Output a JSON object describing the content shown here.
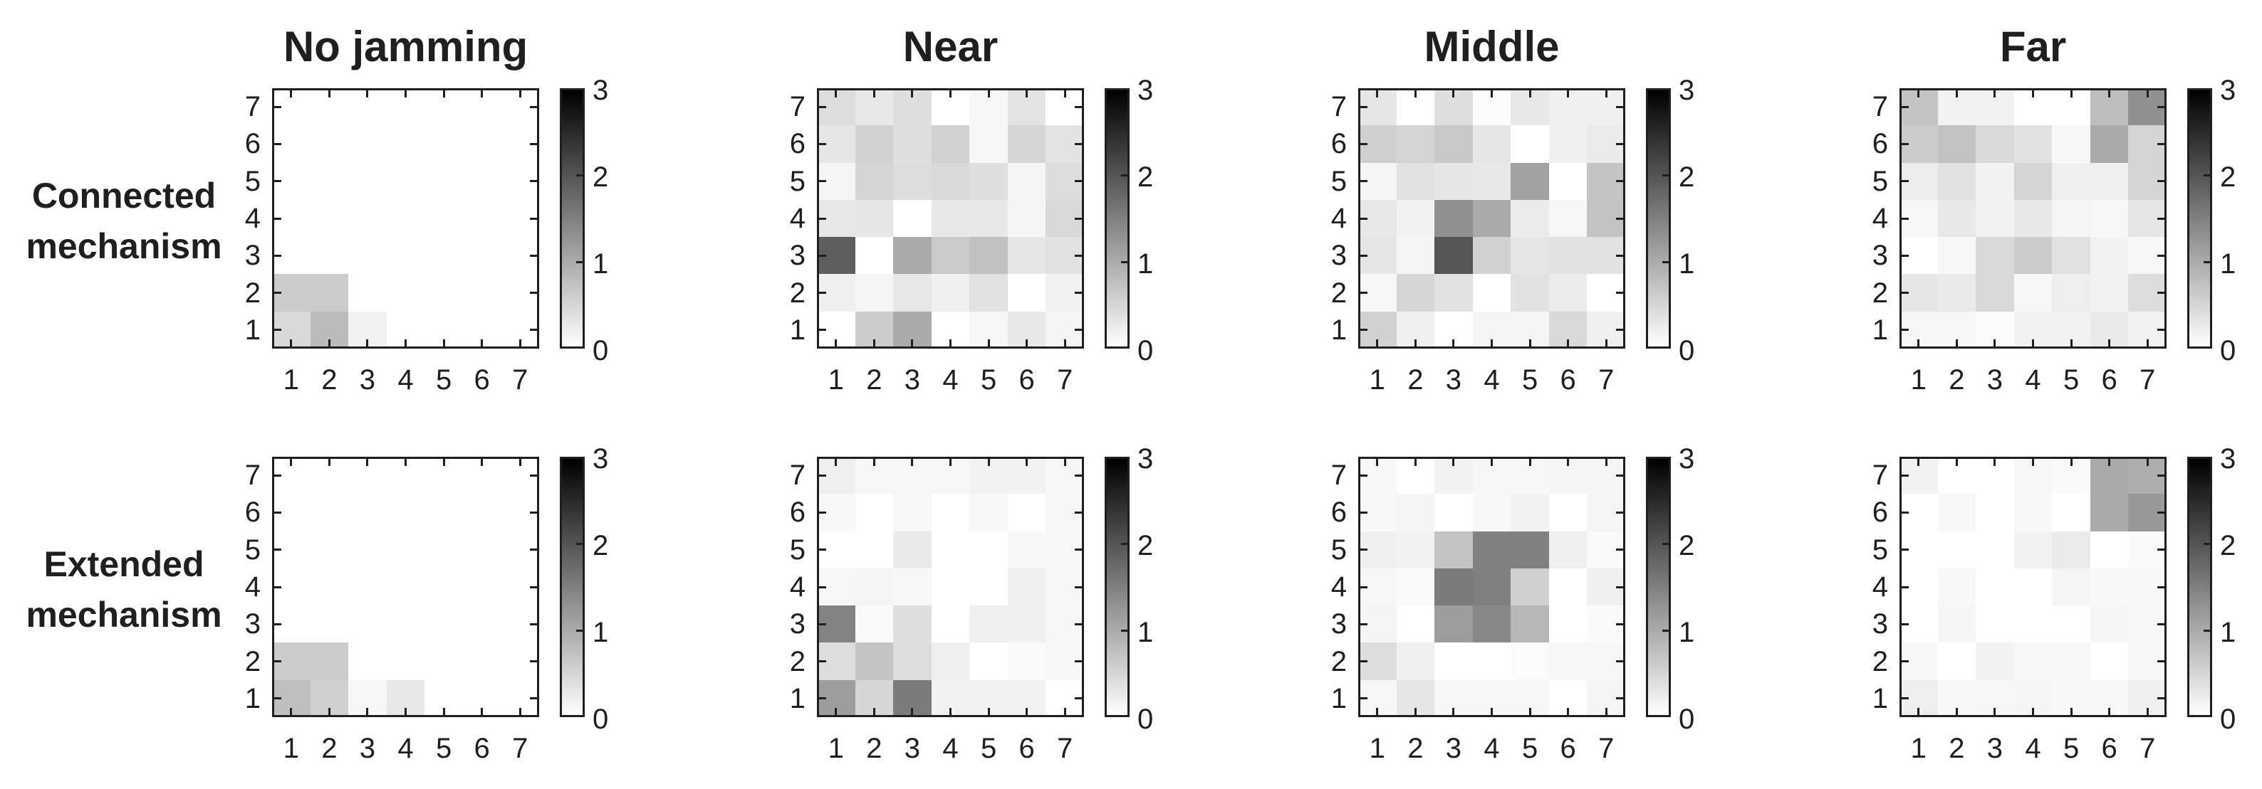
{
  "figure": {
    "column_titles": [
      "No jamming",
      "Near",
      "Middle",
      "Far"
    ],
    "row_labels": [
      "Connected mechanism",
      "Extended mechanism"
    ]
  },
  "axes": {
    "x_ticks": [
      "1",
      "2",
      "3",
      "4",
      "5",
      "6",
      "7"
    ],
    "y_ticks": [
      "1",
      "2",
      "3",
      "4",
      "5",
      "6",
      "7"
    ]
  },
  "colorbar": {
    "ticks": [
      "0",
      "1",
      "2",
      "3"
    ],
    "min": 0,
    "max": 3
  },
  "chart_data": {
    "type": "heatmap",
    "grid": "7x7",
    "x": [
      1,
      2,
      3,
      4,
      5,
      6,
      7
    ],
    "y": [
      1,
      2,
      3,
      4,
      5,
      6,
      7
    ],
    "value_range": [
      0,
      3
    ],
    "colormap": "gray, 0=white, 3=black",
    "rows_order": "values arrays are listed top-to-bottom, i.e. y=7 first down to y=1",
    "panels": [
      {
        "row": "Connected mechanism",
        "column": "No jamming",
        "values": [
          [
            0,
            0,
            0,
            0,
            0,
            0,
            0
          ],
          [
            0,
            0,
            0,
            0,
            0,
            0,
            0
          ],
          [
            0,
            0,
            0,
            0,
            0,
            0,
            0
          ],
          [
            0,
            0,
            0,
            0,
            0,
            0,
            0
          ],
          [
            0,
            0,
            0,
            0,
            0,
            0,
            0
          ],
          [
            0.6,
            0.6,
            0,
            0,
            0,
            0,
            0
          ],
          [
            0.45,
            0.8,
            0.15,
            0,
            0,
            0,
            0
          ]
        ]
      },
      {
        "row": "Connected mechanism",
        "column": "Near",
        "values": [
          [
            0.4,
            0.27,
            0.38,
            0,
            0.1,
            0.33,
            0
          ],
          [
            0.3,
            0.53,
            0.38,
            0.53,
            0.1,
            0.48,
            0.33
          ],
          [
            0.12,
            0.5,
            0.4,
            0.45,
            0.38,
            0.12,
            0.4
          ],
          [
            0.27,
            0.3,
            0,
            0.27,
            0.27,
            0.12,
            0.45
          ],
          [
            1.9,
            0,
            1.0,
            0.62,
            0.73,
            0.3,
            0.35
          ],
          [
            0.19,
            0.12,
            0.27,
            0.18,
            0.34,
            0,
            0.15
          ],
          [
            0,
            0.6,
            1.0,
            0,
            0.1,
            0.27,
            0.12
          ]
        ]
      },
      {
        "row": "Connected mechanism",
        "column": "Middle",
        "values": [
          [
            0.3,
            0,
            0.38,
            0.05,
            0.27,
            0.18,
            0.18
          ],
          [
            0.56,
            0.5,
            0.63,
            0.3,
            0,
            0.18,
            0.24
          ],
          [
            0.12,
            0.34,
            0.3,
            0.27,
            1.1,
            0,
            0.68
          ],
          [
            0.27,
            0.15,
            1.3,
            1.0,
            0.24,
            0.1,
            0.71
          ],
          [
            0.3,
            0.12,
            2.0,
            0.53,
            0.3,
            0.34,
            0.34
          ],
          [
            0.1,
            0.48,
            0.34,
            0,
            0.34,
            0.24,
            0
          ],
          [
            0.53,
            0.18,
            0,
            0.12,
            0.12,
            0.45,
            0.18
          ]
        ]
      },
      {
        "row": "Connected mechanism",
        "column": "Far",
        "values": [
          [
            0.68,
            0.15,
            0.15,
            0,
            0,
            0.78,
            1.3
          ],
          [
            0.6,
            0.72,
            0.45,
            0.34,
            0.1,
            1.0,
            0.5
          ],
          [
            0.21,
            0.34,
            0.15,
            0.5,
            0.18,
            0.18,
            0.5
          ],
          [
            0.1,
            0.27,
            0.15,
            0.27,
            0.12,
            0.1,
            0.3
          ],
          [
            0,
            0.1,
            0.45,
            0.6,
            0.35,
            0.15,
            0.1
          ],
          [
            0.3,
            0.25,
            0.45,
            0.1,
            0.2,
            0.15,
            0.4
          ],
          [
            0.1,
            0.1,
            0.05,
            0.15,
            0.15,
            0.25,
            0.15
          ]
        ]
      },
      {
        "row": "Extended mechanism",
        "column": "No jamming",
        "values": [
          [
            0,
            0,
            0,
            0,
            0,
            0,
            0
          ],
          [
            0,
            0,
            0,
            0,
            0,
            0,
            0
          ],
          [
            0,
            0,
            0,
            0,
            0,
            0,
            0
          ],
          [
            0,
            0,
            0,
            0,
            0,
            0,
            0
          ],
          [
            0,
            0,
            0,
            0,
            0,
            0,
            0
          ],
          [
            0.6,
            0.6,
            0,
            0,
            0,
            0,
            0
          ],
          [
            0.75,
            0.55,
            0.1,
            0.27,
            0,
            0,
            0
          ]
        ]
      },
      {
        "row": "Extended mechanism",
        "column": "Near",
        "values": [
          [
            0.2,
            0.1,
            0.1,
            0.1,
            0.15,
            0.15,
            0.1
          ],
          [
            0.08,
            0,
            0.1,
            0,
            0.08,
            0,
            0.1
          ],
          [
            0,
            0,
            0.25,
            0,
            0,
            0.08,
            0.08
          ],
          [
            0.1,
            0.12,
            0.1,
            0,
            0,
            0.18,
            0.1
          ],
          [
            1.45,
            0.06,
            0.38,
            0,
            0.18,
            0.18,
            0.1
          ],
          [
            0.4,
            0.68,
            0.4,
            0.2,
            0,
            0.06,
            0.08
          ],
          [
            1.15,
            0.48,
            1.55,
            0.15,
            0.15,
            0.15,
            0
          ]
        ]
      },
      {
        "row": "Extended mechanism",
        "column": "Middle",
        "values": [
          [
            0.08,
            0,
            0.15,
            0.1,
            0.1,
            0.12,
            0.12
          ],
          [
            0.08,
            0.12,
            0,
            0.08,
            0.15,
            0,
            0.12
          ],
          [
            0.18,
            0.15,
            0.7,
            1.5,
            1.5,
            0.18,
            0.06
          ],
          [
            0.1,
            0.06,
            1.55,
            1.5,
            0.55,
            0,
            0.18
          ],
          [
            0.12,
            0,
            1.15,
            1.4,
            0.85,
            0,
            0.06
          ],
          [
            0.4,
            0.18,
            0,
            0,
            0.05,
            0.1,
            0.1
          ],
          [
            0.1,
            0.3,
            0.1,
            0.1,
            0.1,
            0,
            0.12
          ]
        ]
      },
      {
        "row": "Extended mechanism",
        "column": "Far",
        "values": [
          [
            0.15,
            0,
            0,
            0.1,
            0.06,
            1.0,
            0.95
          ],
          [
            0,
            0.08,
            0,
            0.08,
            0,
            1.0,
            1.2
          ],
          [
            0,
            0,
            0,
            0.15,
            0.24,
            0,
            0.06
          ],
          [
            0,
            0.08,
            0,
            0,
            0.12,
            0.08,
            0.08
          ],
          [
            0,
            0.12,
            0,
            0,
            0,
            0.12,
            0.08
          ],
          [
            0.08,
            0,
            0.15,
            0.08,
            0.08,
            0,
            0.08
          ],
          [
            0.2,
            0.08,
            0.1,
            0.12,
            0.08,
            0.08,
            0.18
          ]
        ]
      }
    ]
  }
}
